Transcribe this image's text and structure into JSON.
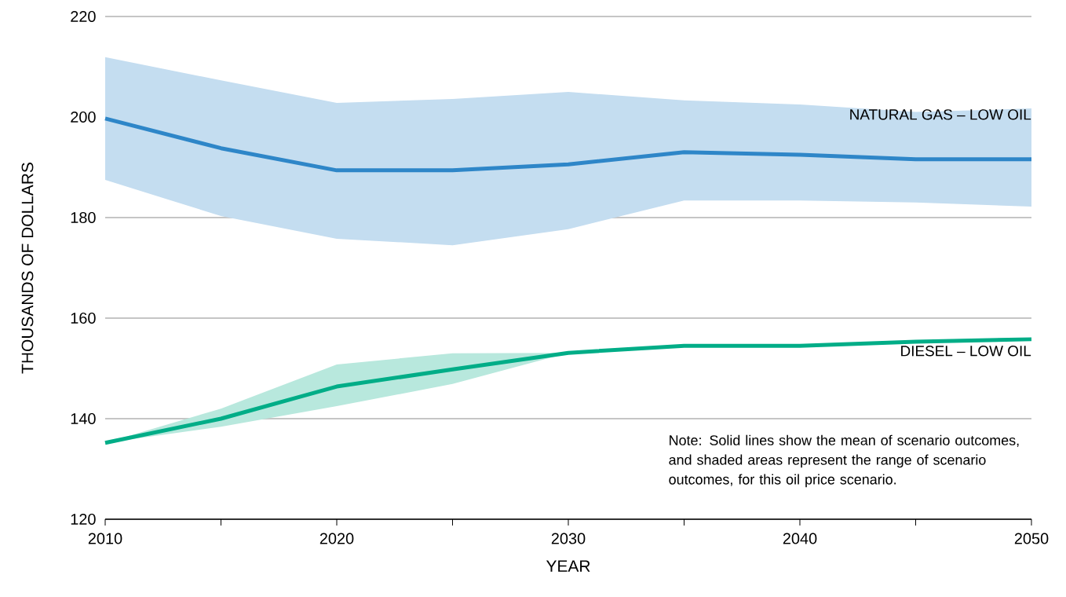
{
  "chart_data": {
    "type": "line",
    "xlabel": "YEAR",
    "ylabel": "THOUSANDS OF DOLLARS",
    "x": [
      2010,
      2015,
      2020,
      2025,
      2030,
      2035,
      2040,
      2045,
      2050
    ],
    "series": [
      {
        "name": "NATURAL GAS – LOW OIL",
        "color": "#2e86c8",
        "values": [
          199.7,
          193.8,
          189.4,
          189.4,
          190.6,
          193,
          192.5,
          191.6,
          191.6
        ],
        "lower": [
          187.5,
          180.3,
          175.8,
          174.5,
          177.7,
          183.4,
          183.4,
          183,
          182.2
        ],
        "upper": [
          211.9,
          207.3,
          202.8,
          203.6,
          205,
          203.3,
          202.5,
          201,
          201.7
        ]
      },
      {
        "name": "DIESEL – LOW OIL",
        "color": "#00ad87",
        "values": [
          135.2,
          140,
          146.4,
          149.8,
          153.1,
          154.5,
          154.5,
          155.3,
          155.8
        ],
        "lower": [
          135.2,
          138.4,
          142.5,
          146.9,
          153.1,
          154.5,
          154.5,
          155.3,
          155.8
        ],
        "upper": [
          135.2,
          142,
          150.8,
          153,
          153.1,
          154.5,
          154.5,
          155.3,
          155.8
        ]
      }
    ],
    "xlim": [
      2010,
      2050
    ],
    "ylim": [
      120,
      220
    ],
    "xticks": [
      2010,
      {
        "value": 2015,
        "label": null
      },
      2020,
      {
        "value": 2025,
        "label": null
      },
      2030,
      {
        "value": 2035,
        "label": null
      },
      2040,
      {
        "value": 2045,
        "label": null
      },
      2050
    ],
    "yticks": [
      120,
      140,
      160,
      180,
      200,
      220
    ],
    "grid": "y",
    "annotations": [
      "Note:  Solid lines show the mean of scenario outcomes, and shaded areas represent the range of scenario outcomes, for this oil price scenario."
    ]
  }
}
